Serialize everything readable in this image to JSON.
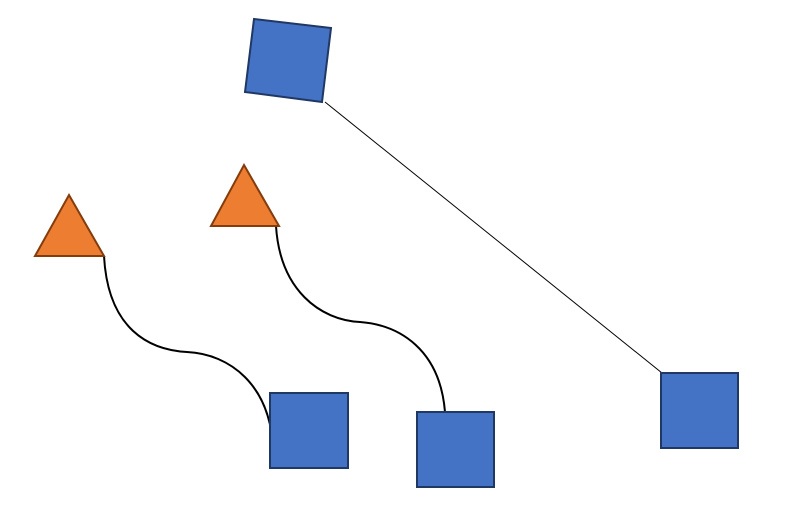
{
  "colors": {
    "background": "#ffffff",
    "square_fill": "#4472c4",
    "square_stroke": "#1f3864",
    "triangle_fill": "#ed7d31",
    "triangle_stroke": "#843c0c",
    "connector": "#000000"
  },
  "shapes": [
    {
      "id": "square-rotated-top",
      "kind": "square",
      "rotated": true
    },
    {
      "id": "triangle-left",
      "kind": "triangle"
    },
    {
      "id": "triangle-middle",
      "kind": "triangle"
    },
    {
      "id": "square-bottom-left",
      "kind": "square"
    },
    {
      "id": "square-bottom-middle",
      "kind": "square"
    },
    {
      "id": "square-right",
      "kind": "square"
    }
  ],
  "connectors": [
    {
      "id": "curve-triangle-left-to-square-bottom-left",
      "style": "curved",
      "from": "triangle-left",
      "to": "square-bottom-left"
    },
    {
      "id": "curve-triangle-middle-to-square-bottom-middle",
      "style": "curved",
      "from": "triangle-middle",
      "to": "square-bottom-middle"
    },
    {
      "id": "line-square-rotated-top-to-square-right",
      "style": "straight",
      "from": "square-rotated-top",
      "to": "square-right"
    }
  ]
}
